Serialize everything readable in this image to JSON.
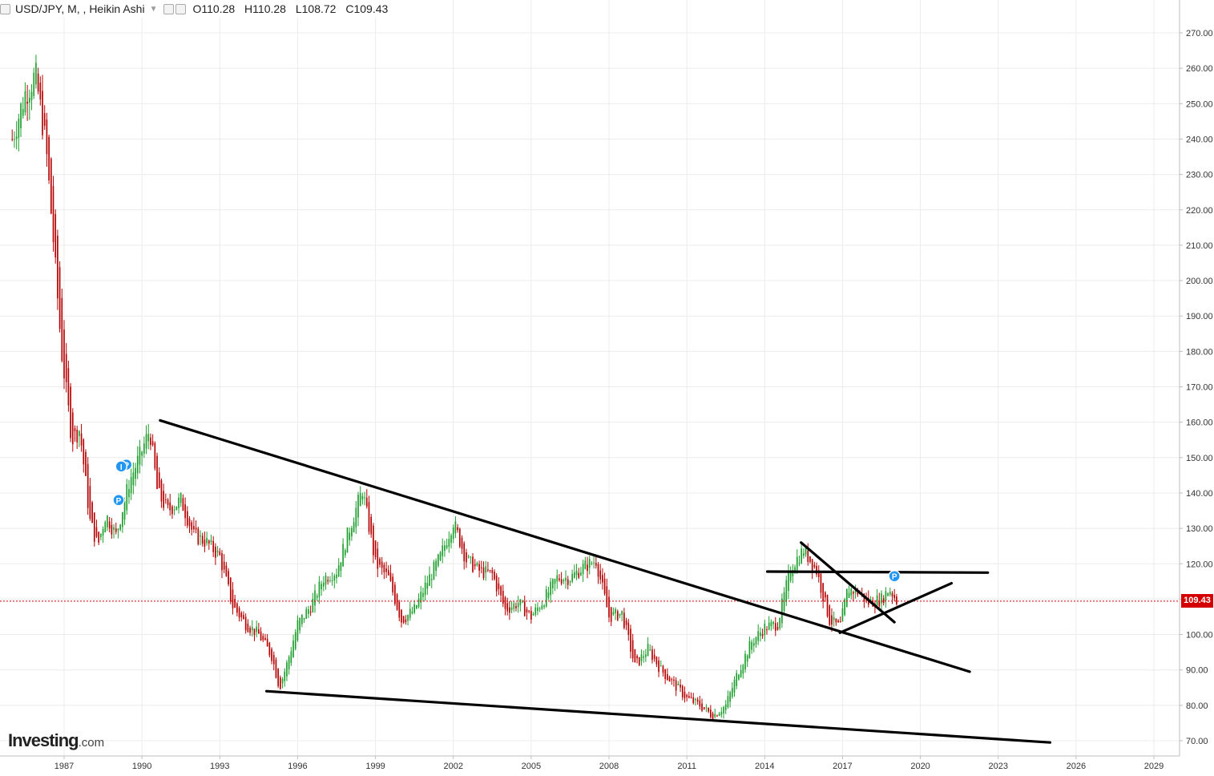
{
  "header": {
    "symbol": "USD/JPY, M, , Heikin Ashi",
    "open": "O110.28",
    "high": "H110.28",
    "low": "L108.72",
    "close": "C109.43"
  },
  "brand": {
    "name": "Investing",
    "suffix": ".com"
  },
  "colors": {
    "up": "#1e9e2e",
    "down": "#b40000",
    "line": "#000000",
    "grid": "#ececec",
    "price": "#d40000",
    "marker": "#2196f3"
  },
  "chart_data": {
    "type": "candlestick",
    "style": "Heikin Ashi",
    "interval": "M",
    "symbol": "USD/JPY",
    "ylim": [
      70,
      280
    ],
    "xlim": [
      1985.0,
      2030.0
    ],
    "y_ticks": [
      "270.00",
      "260.00",
      "250.00",
      "240.00",
      "230.00",
      "220.00",
      "210.00",
      "200.00",
      "190.00",
      "180.00",
      "170.00",
      "160.00",
      "150.00",
      "140.00",
      "130.00",
      "120.00",
      "110.00",
      "100.00",
      "90.00",
      "80.00",
      "70.00"
    ],
    "x_ticks": [
      "1987",
      "1990",
      "1993",
      "1996",
      "1999",
      "2002",
      "2005",
      "2008",
      "2011",
      "2014",
      "2017",
      "2020",
      "2023",
      "2026",
      "2029"
    ],
    "last_price": "109.43",
    "price_path": [
      [
        1985.0,
        240
      ],
      [
        1985.5,
        253
      ],
      [
        1985.9,
        258
      ],
      [
        1986.3,
        238
      ],
      [
        1986.6,
        210
      ],
      [
        1986.9,
        180
      ],
      [
        1987.3,
        155
      ],
      [
        1987.6,
        158
      ],
      [
        1988.0,
        132
      ],
      [
        1988.3,
        125
      ],
      [
        1988.6,
        134
      ],
      [
        1989.0,
        128
      ],
      [
        1989.5,
        143
      ],
      [
        1990.0,
        152
      ],
      [
        1990.3,
        158
      ],
      [
        1990.6,
        140
      ],
      [
        1991.0,
        135
      ],
      [
        1991.5,
        138
      ],
      [
        1992.0,
        128
      ],
      [
        1992.5,
        126
      ],
      [
        1993.0,
        122
      ],
      [
        1993.5,
        108
      ],
      [
        1994.0,
        103
      ],
      [
        1994.5,
        100
      ],
      [
        1995.0,
        94
      ],
      [
        1995.3,
        85
      ],
      [
        1995.6,
        92
      ],
      [
        1996.0,
        103
      ],
      [
        1996.5,
        108
      ],
      [
        1997.0,
        116
      ],
      [
        1997.5,
        118
      ],
      [
        1998.0,
        130
      ],
      [
        1998.5,
        141
      ],
      [
        1999.0,
        120
      ],
      [
        1999.5,
        116
      ],
      [
        2000.0,
        104
      ],
      [
        2000.5,
        107
      ],
      [
        2001.0,
        115
      ],
      [
        2001.5,
        122
      ],
      [
        2002.0,
        132
      ],
      [
        2002.5,
        121
      ],
      [
        2003.0,
        118
      ],
      [
        2003.5,
        117
      ],
      [
        2004.0,
        107
      ],
      [
        2004.5,
        109
      ],
      [
        2005.0,
        105
      ],
      [
        2005.5,
        110
      ],
      [
        2006.0,
        116
      ],
      [
        2006.5,
        116
      ],
      [
        2007.0,
        119
      ],
      [
        2007.5,
        121
      ],
      [
        2008.0,
        105
      ],
      [
        2008.5,
        106
      ],
      [
        2009.0,
        91
      ],
      [
        2009.5,
        96
      ],
      [
        2010.0,
        90
      ],
      [
        2010.5,
        86
      ],
      [
        2011.0,
        82
      ],
      [
        2011.5,
        80
      ],
      [
        2012.0,
        77
      ],
      [
        2012.5,
        80
      ],
      [
        2013.0,
        90
      ],
      [
        2013.5,
        98
      ],
      [
        2014.0,
        102
      ],
      [
        2014.5,
        103
      ],
      [
        2015.0,
        119
      ],
      [
        2015.5,
        124
      ],
      [
        2016.0,
        118
      ],
      [
        2016.5,
        104
      ],
      [
        2016.9,
        102
      ],
      [
        2017.2,
        113
      ],
      [
        2017.6,
        112
      ],
      [
        2018.0,
        109
      ],
      [
        2018.5,
        110
      ],
      [
        2018.8,
        113
      ],
      [
        2019.1,
        109.43
      ]
    ],
    "trendlines": [
      {
        "from": [
          1990.7,
          160.5
        ],
        "to": [
          2021.9,
          89.5
        ]
      },
      {
        "from": [
          1994.8,
          84.0
        ],
        "to": [
          2025.0,
          69.5
        ]
      },
      {
        "from": [
          2015.4,
          126.0
        ],
        "to": [
          2019.0,
          103.5
        ]
      },
      {
        "from": [
          2016.9,
          100.5
        ],
        "to": [
          2021.2,
          114.5
        ]
      },
      {
        "from": [
          2014.1,
          117.8
        ],
        "to": [
          2022.6,
          117.5
        ]
      }
    ],
    "markers": [
      {
        "x": 1989.4,
        "y": 148.0,
        "label": "P"
      },
      {
        "x": 1989.2,
        "y": 147.5,
        "label": "I"
      },
      {
        "x": 1989.1,
        "y": 138.0,
        "label": "P"
      },
      {
        "x": 2019.0,
        "y": 116.5,
        "label": "P"
      }
    ]
  }
}
